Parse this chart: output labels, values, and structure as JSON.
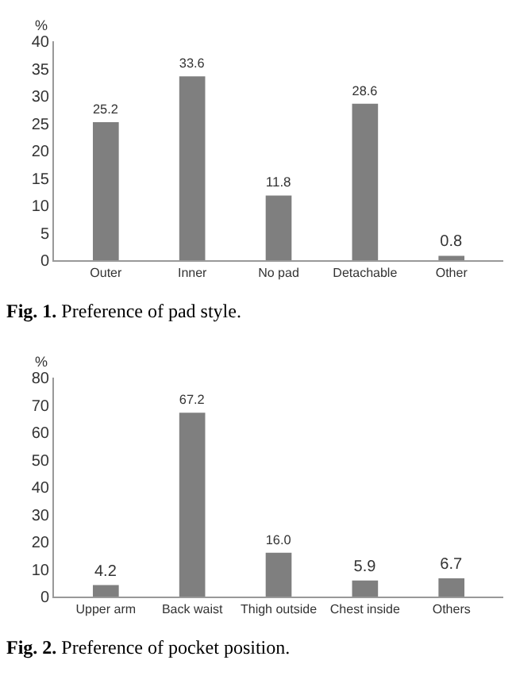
{
  "chart_data": [
    {
      "type": "bar",
      "categories": [
        "Outer",
        "Inner",
        "No pad",
        "Detachable",
        "Other"
      ],
      "values": [
        25.2,
        33.6,
        11.8,
        28.6,
        0.8
      ],
      "value_labels": [
        "25.2",
        "33.6",
        "11.8",
        "28.6",
        "0.8"
      ],
      "color": "#7f7f7f",
      "ylabel": "%",
      "ylim": [
        0,
        40
      ],
      "yticks": [
        0,
        5,
        10,
        15,
        20,
        25,
        30,
        35,
        40
      ],
      "grid": false,
      "legend": false,
      "annotations": [
        "Fig. 1. Preference of pad style."
      ]
    },
    {
      "type": "bar",
      "categories": [
        "Upper arm",
        "Back waist",
        "Thigh outside",
        "Chest inside",
        "Others"
      ],
      "values": [
        4.2,
        67.2,
        16.0,
        5.9,
        6.7
      ],
      "value_labels": [
        "4.2",
        "67.2",
        "16.0",
        "5.9",
        "6.7"
      ],
      "color": "#7f7f7f",
      "ylabel": "%",
      "ylim": [
        0,
        80
      ],
      "yticks": [
        0,
        10,
        20,
        30,
        40,
        50,
        60,
        70,
        80
      ],
      "grid": false,
      "legend": false,
      "annotations": [
        "Fig. 2. Preference of pocket position."
      ]
    }
  ]
}
